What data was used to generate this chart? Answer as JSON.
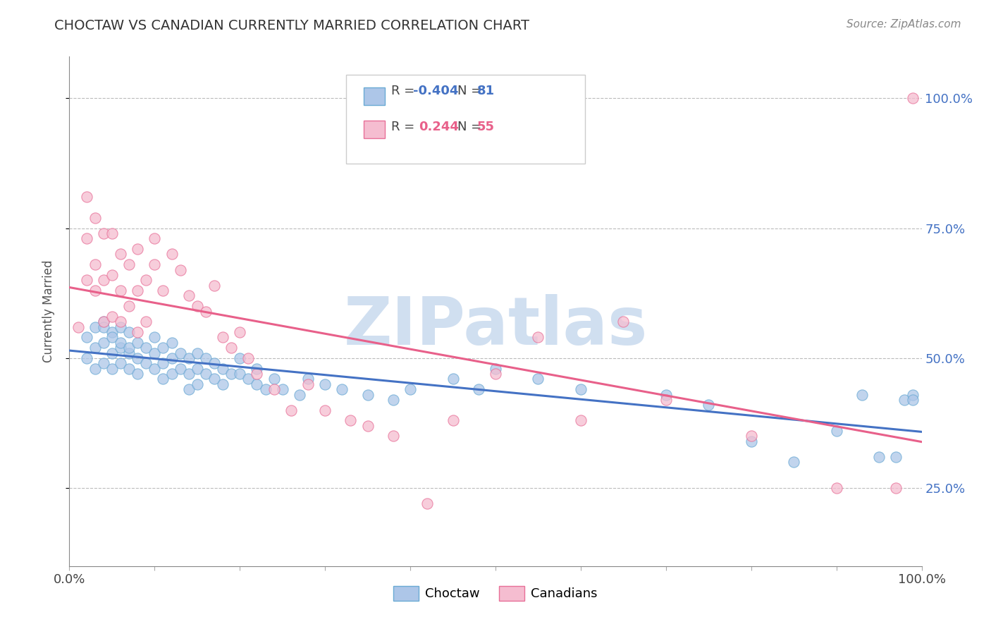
{
  "title": "CHOCTAW VS CANADIAN CURRENTLY MARRIED CORRELATION CHART",
  "source": "Source: ZipAtlas.com",
  "ylabel": "Currently Married",
  "xlim": [
    0.0,
    1.0
  ],
  "ylim": [
    0.1,
    1.08
  ],
  "xtick_positions": [
    0.0,
    0.1,
    0.2,
    0.3,
    0.4,
    0.5,
    0.6,
    0.7,
    0.8,
    0.9,
    1.0
  ],
  "xtick_labels": [
    "0.0%",
    "",
    "",
    "",
    "",
    "",
    "",
    "",
    "",
    "",
    "100.0%"
  ],
  "ytick_positions": [
    0.25,
    0.5,
    0.75,
    1.0
  ],
  "ytick_labels": [
    "25.0%",
    "50.0%",
    "75.0%",
    "100.0%"
  ],
  "choctaw_color": "#adc6e8",
  "canadian_color": "#f5bdd0",
  "choctaw_edge_color": "#6aaad4",
  "canadian_edge_color": "#e87098",
  "choctaw_line_color": "#4472c4",
  "canadian_line_color": "#e8608a",
  "watermark_text": "ZIPatlas",
  "watermark_color": "#d0dff0",
  "background_color": "#ffffff",
  "legend_r1_label": "R = ",
  "legend_r1_val": "-0.404",
  "legend_n1_label": "N = ",
  "legend_n1_val": "81",
  "legend_r2_label": "R =  ",
  "legend_r2_val": "0.244",
  "legend_n2_label": "N = ",
  "legend_n2_val": "55",
  "choctaw_label": "Choctaw",
  "canadian_label": "Canadians",
  "choctaw_x": [
    0.02,
    0.02,
    0.03,
    0.03,
    0.03,
    0.04,
    0.04,
    0.04,
    0.04,
    0.05,
    0.05,
    0.05,
    0.05,
    0.06,
    0.06,
    0.06,
    0.06,
    0.07,
    0.07,
    0.07,
    0.07,
    0.08,
    0.08,
    0.08,
    0.09,
    0.09,
    0.1,
    0.1,
    0.1,
    0.11,
    0.11,
    0.11,
    0.12,
    0.12,
    0.12,
    0.13,
    0.13,
    0.14,
    0.14,
    0.14,
    0.15,
    0.15,
    0.15,
    0.16,
    0.16,
    0.17,
    0.17,
    0.18,
    0.18,
    0.19,
    0.2,
    0.2,
    0.21,
    0.22,
    0.22,
    0.23,
    0.24,
    0.25,
    0.27,
    0.28,
    0.3,
    0.32,
    0.35,
    0.38,
    0.4,
    0.45,
    0.48,
    0.5,
    0.55,
    0.6,
    0.7,
    0.75,
    0.8,
    0.85,
    0.9,
    0.93,
    0.95,
    0.97,
    0.98,
    0.99,
    0.99
  ],
  "choctaw_y": [
    0.54,
    0.5,
    0.56,
    0.52,
    0.48,
    0.57,
    0.53,
    0.49,
    0.56,
    0.55,
    0.51,
    0.48,
    0.54,
    0.56,
    0.52,
    0.49,
    0.53,
    0.55,
    0.51,
    0.48,
    0.52,
    0.53,
    0.5,
    0.47,
    0.52,
    0.49,
    0.54,
    0.51,
    0.48,
    0.52,
    0.49,
    0.46,
    0.53,
    0.5,
    0.47,
    0.51,
    0.48,
    0.5,
    0.47,
    0.44,
    0.51,
    0.48,
    0.45,
    0.5,
    0.47,
    0.49,
    0.46,
    0.48,
    0.45,
    0.47,
    0.5,
    0.47,
    0.46,
    0.48,
    0.45,
    0.44,
    0.46,
    0.44,
    0.43,
    0.46,
    0.45,
    0.44,
    0.43,
    0.42,
    0.44,
    0.46,
    0.44,
    0.48,
    0.46,
    0.44,
    0.43,
    0.41,
    0.34,
    0.3,
    0.36,
    0.43,
    0.31,
    0.31,
    0.42,
    0.43,
    0.42
  ],
  "canadian_x": [
    0.01,
    0.02,
    0.02,
    0.02,
    0.03,
    0.03,
    0.03,
    0.04,
    0.04,
    0.04,
    0.05,
    0.05,
    0.05,
    0.06,
    0.06,
    0.06,
    0.07,
    0.07,
    0.08,
    0.08,
    0.08,
    0.09,
    0.09,
    0.1,
    0.1,
    0.11,
    0.12,
    0.13,
    0.14,
    0.15,
    0.16,
    0.17,
    0.18,
    0.19,
    0.2,
    0.21,
    0.22,
    0.24,
    0.26,
    0.28,
    0.3,
    0.33,
    0.35,
    0.38,
    0.42,
    0.45,
    0.5,
    0.55,
    0.6,
    0.65,
    0.7,
    0.8,
    0.9,
    0.97,
    0.99
  ],
  "canadian_y": [
    0.56,
    0.81,
    0.73,
    0.65,
    0.77,
    0.68,
    0.63,
    0.74,
    0.65,
    0.57,
    0.74,
    0.66,
    0.58,
    0.7,
    0.63,
    0.57,
    0.68,
    0.6,
    0.71,
    0.63,
    0.55,
    0.65,
    0.57,
    0.68,
    0.73,
    0.63,
    0.7,
    0.67,
    0.62,
    0.6,
    0.59,
    0.64,
    0.54,
    0.52,
    0.55,
    0.5,
    0.47,
    0.44,
    0.4,
    0.45,
    0.4,
    0.38,
    0.37,
    0.35,
    0.22,
    0.38,
    0.47,
    0.54,
    0.38,
    0.57,
    0.42,
    0.35,
    0.25,
    0.25,
    1.0
  ]
}
